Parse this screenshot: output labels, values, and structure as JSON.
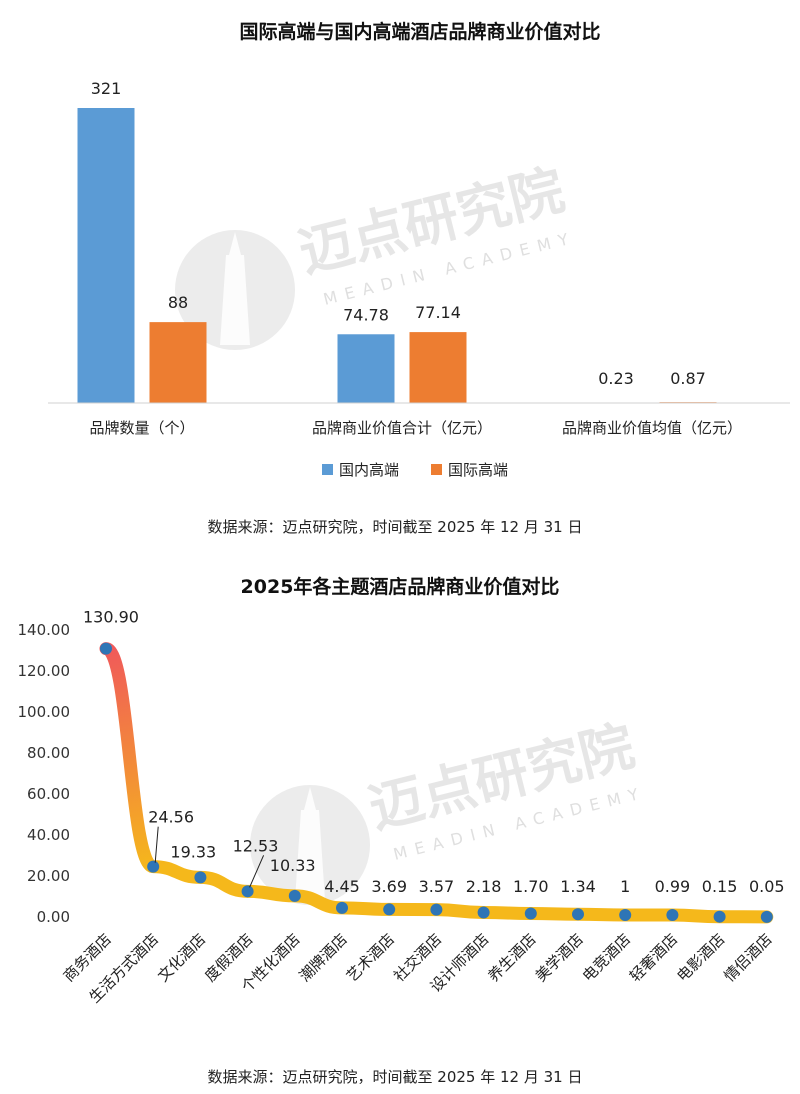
{
  "watermark": {
    "brand_cn": "迈点研究院",
    "brand_en": "MEADIN ACADEMY"
  },
  "chart_data": [
    {
      "type": "bar",
      "title": "国际高端与国内高端酒店品牌商业价值对比",
      "categories": [
        "品牌数量（个）",
        "品牌商业价值合计（亿元）",
        "品牌商业价值均值（亿元）"
      ],
      "series": [
        {
          "name": "国内高端",
          "values": [
            321,
            74.78,
            0.23
          ],
          "labels": [
            "321",
            "74.78",
            "0.23"
          ],
          "color": "#5b9bd5"
        },
        {
          "name": "国际高端",
          "values": [
            88,
            77.14,
            0.87
          ],
          "labels": [
            "88",
            "77.14",
            "0.87"
          ],
          "color": "#ed7d31"
        }
      ],
      "legend": "bottom",
      "grid": false,
      "source": "数据来源：迈点研究院，时间截至 2025 年 12 月 31 日"
    },
    {
      "type": "line",
      "title": "2025年各主题酒店品牌商业价值对比",
      "categories": [
        "商务酒店",
        "生活方式酒店",
        "文化酒店",
        "度假酒店",
        "个性化酒店",
        "潮牌酒店",
        "艺术酒店",
        "社交酒店",
        "设计师酒店",
        "养生酒店",
        "美学酒店",
        "电竞酒店",
        "轻奢酒店",
        "电影酒店",
        "情侣酒店"
      ],
      "values": [
        130.9,
        24.56,
        19.33,
        12.53,
        10.33,
        4.45,
        3.69,
        3.57,
        2.18,
        1.7,
        1.34,
        1,
        0.99,
        0.15,
        0.05
      ],
      "labels": [
        "130.90",
        "24.56",
        "19.33",
        "12.53",
        "10.33",
        "4.45",
        "3.69",
        "3.57",
        "2.18",
        "1.70",
        "1.34",
        "1",
        "0.99",
        "0.15",
        "0.05"
      ],
      "yticks": [
        "0.00",
        "20.00",
        "40.00",
        "60.00",
        "80.00",
        "100.00",
        "120.00",
        "140.00"
      ],
      "ylim": [
        0,
        140
      ],
      "line_color": "#f5b81b",
      "line_color_start": "#f05a5a",
      "marker_color": "#2e75b6",
      "grid": false,
      "source": "数据来源：迈点研究院，时间截至 2025 年 12 月 31 日"
    }
  ]
}
